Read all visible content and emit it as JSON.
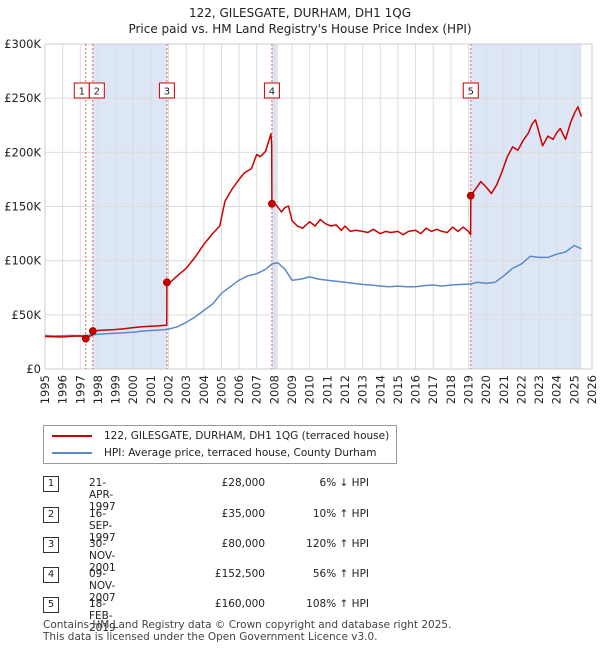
{
  "title_line1": "122, GILESGATE, DURHAM, DH1 1QG",
  "title_line2": "Price paid vs. HM Land Registry's House Price Index (HPI)",
  "legend": {
    "property_label": "122, GILESGATE, DURHAM, DH1 1QG (terraced house)",
    "hpi_label": "HPI: Average price, terraced house, County Durham"
  },
  "colors": {
    "property": "#cc0000",
    "hpi": "#5b8ac6",
    "shade": "#dde6f5",
    "vline": "#e06060"
  },
  "transactions": [
    {
      "num": "1",
      "date": "21-APR-1997",
      "price": "£28,000",
      "hpi": "6% ↓ HPI"
    },
    {
      "num": "2",
      "date": "16-SEP-1997",
      "price": "£35,000",
      "hpi": "10% ↑ HPI"
    },
    {
      "num": "3",
      "date": "30-NOV-2001",
      "price": "£80,000",
      "hpi": "120% ↑ HPI"
    },
    {
      "num": "4",
      "date": "09-NOV-2007",
      "price": "£152,500",
      "hpi": "56% ↑ HPI"
    },
    {
      "num": "5",
      "date": "18-FEB-2019",
      "price": "£160,000",
      "hpi": "108% ↑ HPI"
    }
  ],
  "footer": {
    "line1": "Contains HM Land Registry data © Crown copyright and database right 2025.",
    "line2": "This data is licensed under the Open Government Licence v3.0."
  },
  "chart_data": {
    "type": "line",
    "title": "122, GILESGATE, DURHAM, DH1 1QG — Price paid vs. HM Land Registry's House Price Index (HPI)",
    "xlabel": "",
    "ylabel": "",
    "xlim": [
      1995,
      2026
    ],
    "ylim": [
      0,
      300000
    ],
    "x_ticks": [
      1995,
      1996,
      1997,
      1998,
      1999,
      2000,
      2001,
      2002,
      2003,
      2004,
      2005,
      2006,
      2007,
      2008,
      2009,
      2010,
      2011,
      2012,
      2013,
      2014,
      2015,
      2016,
      2017,
      2018,
      2019,
      2020,
      2021,
      2022,
      2023,
      2024,
      2025,
      2026
    ],
    "y_ticks": [
      0,
      50000,
      100000,
      150000,
      200000,
      250000,
      300000
    ],
    "y_tick_labels": [
      "£0",
      "£50K",
      "£100K",
      "£150K",
      "£200K",
      "£250K",
      "£300K"
    ],
    "grid": true,
    "shaded_ranges": [
      [
        1997.72,
        2001.92
      ],
      [
        2007.86,
        2008.2
      ],
      [
        2019.13,
        2025.4
      ]
    ],
    "series": [
      {
        "name": "122, GILESGATE, DURHAM, DH1 1QG (terraced house)",
        "color": "#cc0000",
        "points": [
          [
            1995.0,
            30000
          ],
          [
            1995.5,
            29800
          ],
          [
            1996.0,
            29500
          ],
          [
            1996.5,
            30200
          ],
          [
            1997.0,
            30500
          ],
          [
            1997.3,
            29500
          ],
          [
            1997.31,
            28000
          ],
          [
            1997.5,
            30000
          ],
          [
            1997.7,
            31500
          ],
          [
            1997.71,
            35000
          ],
          [
            1998.0,
            35500
          ],
          [
            1998.5,
            36000
          ],
          [
            1999.0,
            36500
          ],
          [
            1999.5,
            37200
          ],
          [
            2000.0,
            38200
          ],
          [
            2000.5,
            39000
          ],
          [
            2001.0,
            39500
          ],
          [
            2001.5,
            40000
          ],
          [
            2001.9,
            40500
          ],
          [
            2001.91,
            80000
          ],
          [
            2002.0,
            78500
          ],
          [
            2002.5,
            86000
          ],
          [
            2003.0,
            93000
          ],
          [
            2003.5,
            103000
          ],
          [
            2004.0,
            115000
          ],
          [
            2004.5,
            125000
          ],
          [
            2004.9,
            132000
          ],
          [
            2005.2,
            155000
          ],
          [
            2005.6,
            166000
          ],
          [
            2006.0,
            175000
          ],
          [
            2006.3,
            181000
          ],
          [
            2006.7,
            185000
          ],
          [
            2007.0,
            198000
          ],
          [
            2007.2,
            196000
          ],
          [
            2007.5,
            201000
          ],
          [
            2007.8,
            217000
          ],
          [
            2007.85,
            207000
          ],
          [
            2007.86,
            152500
          ],
          [
            2008.1,
            151500
          ],
          [
            2008.4,
            145000
          ],
          [
            2008.6,
            149000
          ],
          [
            2008.8,
            150500
          ],
          [
            2009.0,
            137000
          ],
          [
            2009.3,
            132000
          ],
          [
            2009.6,
            130000
          ],
          [
            2010.0,
            136000
          ],
          [
            2010.3,
            132000
          ],
          [
            2010.6,
            138000
          ],
          [
            2010.9,
            134000
          ],
          [
            2011.2,
            132000
          ],
          [
            2011.5,
            133000
          ],
          [
            2011.8,
            128000
          ],
          [
            2012.0,
            132000
          ],
          [
            2012.3,
            127000
          ],
          [
            2012.6,
            128000
          ],
          [
            2013.0,
            127000
          ],
          [
            2013.3,
            126000
          ],
          [
            2013.6,
            129000
          ],
          [
            2014.0,
            125000
          ],
          [
            2014.3,
            127000
          ],
          [
            2014.6,
            126000
          ],
          [
            2015.0,
            127000
          ],
          [
            2015.3,
            124000
          ],
          [
            2015.6,
            127000
          ],
          [
            2016.0,
            128000
          ],
          [
            2016.3,
            125000
          ],
          [
            2016.6,
            130000
          ],
          [
            2016.9,
            127000
          ],
          [
            2017.2,
            129000
          ],
          [
            2017.5,
            127000
          ],
          [
            2017.8,
            126000
          ],
          [
            2018.1,
            131000
          ],
          [
            2018.4,
            127000
          ],
          [
            2018.7,
            131000
          ],
          [
            2019.0,
            127000
          ],
          [
            2019.12,
            124000
          ],
          [
            2019.13,
            160000
          ],
          [
            2019.4,
            166000
          ],
          [
            2019.7,
            173000
          ],
          [
            2020.0,
            168000
          ],
          [
            2020.3,
            162000
          ],
          [
            2020.6,
            170000
          ],
          [
            2020.9,
            182000
          ],
          [
            2021.2,
            196000
          ],
          [
            2021.5,
            205000
          ],
          [
            2021.8,
            202000
          ],
          [
            2022.1,
            211000
          ],
          [
            2022.4,
            218000
          ],
          [
            2022.6,
            226000
          ],
          [
            2022.8,
            230000
          ],
          [
            2023.0,
            218000
          ],
          [
            2023.2,
            206000
          ],
          [
            2023.5,
            215000
          ],
          [
            2023.8,
            212000
          ],
          [
            2024.0,
            218000
          ],
          [
            2024.2,
            222000
          ],
          [
            2024.5,
            212000
          ],
          [
            2024.8,
            228000
          ],
          [
            2025.0,
            236000
          ],
          [
            2025.2,
            242000
          ],
          [
            2025.4,
            233000
          ]
        ]
      },
      {
        "name": "HPI: Average price, terraced house, County Durham",
        "color": "#5b8ac6",
        "points": [
          [
            1995.0,
            31000
          ],
          [
            1995.5,
            30500
          ],
          [
            1996.0,
            30800
          ],
          [
            1996.5,
            31000
          ],
          [
            1997.0,
            30800
          ],
          [
            1997.3,
            31000
          ],
          [
            1997.7,
            31500
          ],
          [
            1998.0,
            32000
          ],
          [
            1998.5,
            32500
          ],
          [
            1999.0,
            33000
          ],
          [
            1999.5,
            33500
          ],
          [
            2000.0,
            34000
          ],
          [
            2000.5,
            35000
          ],
          [
            2001.0,
            35500
          ],
          [
            2001.5,
            36000
          ],
          [
            2001.9,
            36500
          ],
          [
            2002.5,
            39000
          ],
          [
            2003.0,
            43000
          ],
          [
            2003.5,
            48000
          ],
          [
            2004.0,
            54000
          ],
          [
            2004.5,
            60000
          ],
          [
            2005.0,
            70000
          ],
          [
            2005.5,
            76000
          ],
          [
            2006.0,
            82000
          ],
          [
            2006.5,
            86000
          ],
          [
            2007.0,
            88000
          ],
          [
            2007.5,
            92000
          ],
          [
            2007.86,
            97000
          ],
          [
            2008.2,
            98000
          ],
          [
            2008.6,
            92000
          ],
          [
            2009.0,
            82000
          ],
          [
            2009.5,
            83000
          ],
          [
            2010.0,
            85000
          ],
          [
            2010.5,
            83000
          ],
          [
            2011.0,
            82000
          ],
          [
            2011.5,
            81000
          ],
          [
            2012.0,
            80000
          ],
          [
            2012.5,
            79000
          ],
          [
            2013.0,
            78000
          ],
          [
            2013.5,
            77500
          ],
          [
            2014.0,
            76500
          ],
          [
            2014.5,
            76000
          ],
          [
            2015.0,
            76500
          ],
          [
            2015.5,
            76000
          ],
          [
            2016.0,
            76000
          ],
          [
            2016.5,
            77000
          ],
          [
            2017.0,
            77500
          ],
          [
            2017.5,
            76500
          ],
          [
            2018.0,
            77500
          ],
          [
            2018.5,
            78000
          ],
          [
            2019.13,
            78500
          ],
          [
            2019.5,
            80000
          ],
          [
            2020.0,
            79000
          ],
          [
            2020.5,
            80000
          ],
          [
            2021.0,
            86000
          ],
          [
            2021.5,
            93000
          ],
          [
            2022.0,
            97000
          ],
          [
            2022.5,
            104000
          ],
          [
            2023.0,
            103000
          ],
          [
            2023.5,
            103000
          ],
          [
            2024.0,
            106000
          ],
          [
            2024.5,
            108000
          ],
          [
            2025.0,
            114000
          ],
          [
            2025.4,
            111000
          ]
        ]
      }
    ],
    "markers": [
      {
        "label": "1",
        "x": 1997.31,
        "y": 28000
      },
      {
        "label": "2",
        "x": 1997.71,
        "y": 35000
      },
      {
        "label": "3",
        "x": 2001.91,
        "y": 80000
      },
      {
        "label": "4",
        "x": 2007.86,
        "y": 152500
      },
      {
        "label": "5",
        "x": 2019.13,
        "y": 160000
      }
    ]
  }
}
